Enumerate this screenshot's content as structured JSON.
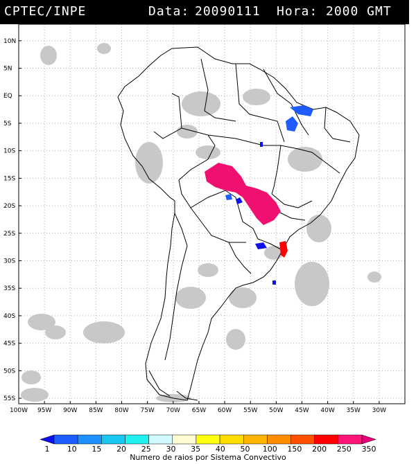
{
  "header": {
    "agency": "CPTEC/INPE",
    "date_label": "Data:",
    "date": "20090111",
    "hour_label": "Hora:",
    "hour": "2000 GMT"
  },
  "map": {
    "lon_range": [
      -100,
      -25
    ],
    "lat_range": [
      -56,
      13
    ],
    "lat_ticks": [
      "10N",
      "5N",
      "EQ",
      "5S",
      "10S",
      "15S",
      "20S",
      "25S",
      "30S",
      "35S",
      "40S",
      "45S",
      "50S",
      "55S"
    ],
    "lon_ticks": [
      "100W",
      "95W",
      "90W",
      "85W",
      "80W",
      "75W",
      "70W",
      "65W",
      "60W",
      "55W",
      "50W",
      "45W",
      "40W",
      "35W",
      "30W"
    ],
    "colors": {
      "land_border": "#000000",
      "cloud": "#c8c8c8",
      "grid": "#b0b0b0"
    }
  },
  "colorbar": {
    "levels": [
      "1",
      "10",
      "15",
      "20",
      "25",
      "30",
      "35",
      "40",
      "50",
      "100",
      "150",
      "200",
      "250",
      "350"
    ],
    "colors": [
      "#1010ee",
      "#1e5cff",
      "#1e90ff",
      "#19c8f0",
      "#20f0f0",
      "#cffaff",
      "#fffad0",
      "#ffff10",
      "#ffdc00",
      "#ffb400",
      "#ff8c00",
      "#ff5000",
      "#ff0000",
      "#ff1478",
      "#e6007a"
    ],
    "caption": "Numero de raios por Sistema Convectivo"
  }
}
